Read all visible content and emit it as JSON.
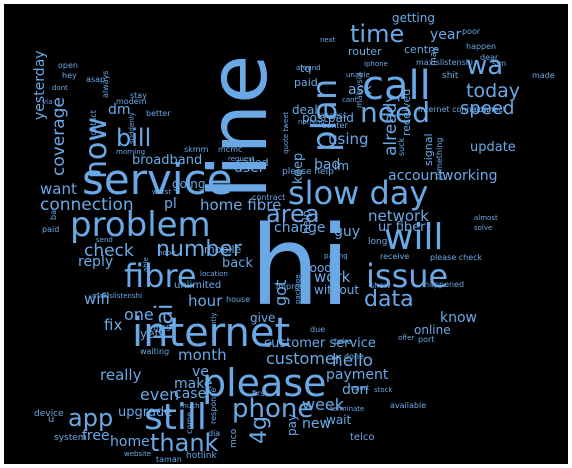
{
  "theme": {
    "word_color": "#6aa9e6",
    "background_color": "#000000",
    "frame_color": "#ffffff"
  },
  "words": [
    {
      "text": "hi"
    },
    {
      "text": "line"
    },
    {
      "text": "service"
    },
    {
      "text": "internet"
    },
    {
      "text": "please"
    },
    {
      "text": "slow day"
    },
    {
      "text": "problem"
    },
    {
      "text": "call"
    },
    {
      "text": "fibre"
    },
    {
      "text": "still"
    },
    {
      "text": "issue"
    },
    {
      "text": "will"
    },
    {
      "text": "now"
    },
    {
      "text": "plan"
    },
    {
      "text": "time"
    },
    {
      "text": "need"
    },
    {
      "text": "area"
    },
    {
      "text": "phone"
    },
    {
      "text": "bill"
    },
    {
      "text": "app"
    },
    {
      "text": "thank"
    },
    {
      "text": "data"
    },
    {
      "text": "number"
    },
    {
      "text": "wa"
    },
    {
      "text": "hai"
    },
    {
      "text": "4g"
    },
    {
      "text": "connection"
    },
    {
      "text": "customer service"
    },
    {
      "text": "customer"
    },
    {
      "text": "hello"
    },
    {
      "text": "network"
    },
    {
      "text": "already"
    },
    {
      "text": "today"
    },
    {
      "text": "speed"
    },
    {
      "text": "coverage"
    },
    {
      "text": "check"
    },
    {
      "text": "home fibre"
    },
    {
      "text": "month"
    },
    {
      "text": "week"
    },
    {
      "text": "using"
    },
    {
      "text": "working"
    },
    {
      "text": "account"
    },
    {
      "text": "payment"
    },
    {
      "text": "really"
    },
    {
      "text": "wifi"
    },
    {
      "text": "want"
    },
    {
      "text": "yesterday"
    },
    {
      "text": "user"
    },
    {
      "text": "bad"
    },
    {
      "text": "got"
    },
    {
      "text": "work"
    },
    {
      "text": "fix"
    },
    {
      "text": "one"
    },
    {
      "text": "dm"
    },
    {
      "text": "know"
    },
    {
      "text": "ask"
    },
    {
      "text": "hour"
    },
    {
      "text": "even"
    },
    {
      "text": "case"
    },
    {
      "text": "make"
    },
    {
      "text": "don"
    },
    {
      "text": "ve"
    },
    {
      "text": "new"
    },
    {
      "text": "reply"
    },
    {
      "text": "home"
    },
    {
      "text": "free"
    },
    {
      "text": "upgrade"
    },
    {
      "text": "pl"
    },
    {
      "text": "broadband"
    },
    {
      "text": "keep"
    },
    {
      "text": "change"
    },
    {
      "text": "guy"
    },
    {
      "text": "ur fiber"
    },
    {
      "text": "update"
    },
    {
      "text": "year"
    },
    {
      "text": "getting"
    },
    {
      "text": "paid"
    },
    {
      "text": "tq"
    },
    {
      "text": "router"
    },
    {
      "text": "centre"
    },
    {
      "text": "received"
    },
    {
      "text": "signal"
    },
    {
      "text": "online"
    },
    {
      "text": "postpaid"
    },
    {
      "text": "im"
    },
    {
      "text": "going"
    },
    {
      "text": "called"
    },
    {
      "text": "deal"
    },
    {
      "text": "help"
    },
    {
      "text": "good"
    },
    {
      "text": "without"
    },
    {
      "text": "give"
    },
    {
      "text": "unlimited"
    },
    {
      "text": "mobile"
    },
    {
      "text": "back"
    },
    {
      "text": "yet"
    },
    {
      "text": "wait"
    },
    {
      "text": "pay"
    },
    {
      "text": "telco"
    },
    {
      "text": "hotlink"
    },
    {
      "text": "taman"
    },
    {
      "text": "system"
    },
    {
      "text": "device"
    },
    {
      "text": "via"
    },
    {
      "text": "dont"
    },
    {
      "text": "open"
    },
    {
      "text": "hey"
    },
    {
      "text": "asap"
    },
    {
      "text": "always"
    },
    {
      "text": "modem"
    },
    {
      "text": "stay"
    },
    {
      "text": "contact"
    },
    {
      "text": "better"
    },
    {
      "text": "suddenly"
    },
    {
      "text": "morning"
    },
    {
      "text": "skmm"
    },
    {
      "text": "mcmc"
    },
    {
      "text": "request"
    },
    {
      "text": "contract"
    },
    {
      "text": "please help"
    },
    {
      "text": "quote tweet"
    },
    {
      "text": "nothing"
    },
    {
      "text": "around"
    },
    {
      "text": "next"
    },
    {
      "text": "iphone"
    },
    {
      "text": "unable"
    },
    {
      "text": "cant"
    },
    {
      "text": "access"
    },
    {
      "text": "center"
    },
    {
      "text": "malaysia"
    },
    {
      "text": "maxislistenshi"
    },
    {
      "text": "internet connection"
    },
    {
      "text": "something"
    },
    {
      "text": "shit"
    },
    {
      "text": "happen"
    },
    {
      "text": "dear"
    },
    {
      "text": "sim"
    },
    {
      "text": "made"
    },
    {
      "text": "poor"
    },
    {
      "text": "may"
    },
    {
      "text": "connect"
    },
    {
      "text": "suck"
    },
    {
      "text": "almost"
    },
    {
      "text": "solve"
    },
    {
      "text": "long"
    },
    {
      "text": "please check"
    },
    {
      "text": "receive"
    },
    {
      "text": "happened"
    },
    {
      "text": "show"
    },
    {
      "text": "offer"
    },
    {
      "text": "port"
    },
    {
      "text": "done"
    },
    {
      "text": "report"
    },
    {
      "text": "stock"
    },
    {
      "text": "available"
    },
    {
      "text": "terminate"
    },
    {
      "text": "first"
    },
    {
      "text": "much"
    },
    {
      "text": "website"
    },
    {
      "text": "waiting"
    },
    {
      "text": "currently"
    },
    {
      "text": "rm25"
    },
    {
      "text": "take"
    },
    {
      "text": "due"
    },
    {
      "text": "improve"
    },
    {
      "text": "paying"
    },
    {
      "text": "package"
    },
    {
      "text": "house"
    },
    {
      "text": "location"
    },
    {
      "text": "hope"
    },
    {
      "text": "send"
    },
    {
      "text": "maxislistenshi"
    },
    {
      "text": "able"
    },
    {
      "text": "worst"
    },
    {
      "text": "bar"
    },
    {
      "text": "paid"
    },
    {
      "text": "u"
    },
    {
      "text": "come"
    },
    {
      "text": "mco"
    },
    {
      "text": "dia"
    },
    {
      "text": "response"
    }
  ]
}
